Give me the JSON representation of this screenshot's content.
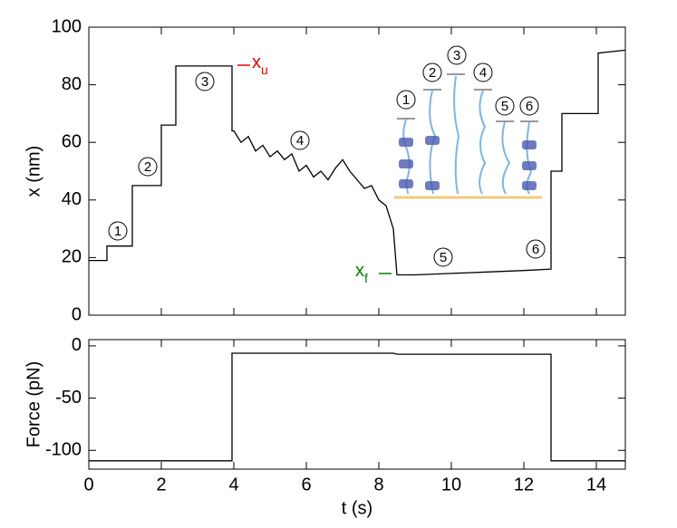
{
  "chart_data": [
    {
      "type": "line",
      "ylabel": "x (nm)",
      "xlim": [
        0,
        14.8
      ],
      "xticks": [
        0,
        2,
        4,
        6,
        8,
        10,
        12,
        14
      ],
      "ylim": [
        0,
        100
      ],
      "yticks": [
        0,
        20,
        40,
        60,
        80,
        100
      ],
      "series": [
        {
          "color": "#000000",
          "x": [
            0,
            0.5,
            0.5,
            1.2,
            1.2,
            2.0,
            2.0,
            2.4,
            2.4,
            3.95,
            3.95,
            4.0,
            4.2,
            4.4,
            4.6,
            4.8,
            5.0,
            5.2,
            5.4,
            5.6,
            5.8,
            6.0,
            6.2,
            6.4,
            6.6,
            6.8,
            7.0,
            7.2,
            7.4,
            7.6,
            7.8,
            8.0,
            8.2,
            8.4,
            8.5,
            9,
            10,
            11,
            12,
            12.75,
            12.75,
            13.05,
            13.05,
            14.05,
            14.05,
            14.8
          ],
          "values": [
            19,
            19,
            24,
            24,
            45,
            45,
            66,
            66,
            86.5,
            86.5,
            64,
            64,
            60,
            62,
            57,
            59,
            55,
            57,
            54,
            56,
            50,
            52,
            48,
            50,
            47,
            51,
            54,
            50,
            47,
            44,
            45,
            40,
            38,
            30,
            14,
            14,
            14.5,
            15,
            15.5,
            16,
            50,
            50,
            70,
            70,
            91,
            92
          ]
        }
      ],
      "annotations": [
        "1",
        "2",
        "3",
        "4",
        "5",
        "6"
      ],
      "level_labels": [
        {
          "text": "x",
          "sub": "u",
          "color": "#e00000"
        },
        {
          "text": "x",
          "sub": "f",
          "color": "#008000"
        }
      ]
    },
    {
      "type": "line",
      "xlabel": "t (s)",
      "ylabel": "Force (pN)",
      "xlim": [
        0,
        14.8
      ],
      "xticks": [
        0,
        2,
        4,
        6,
        8,
        10,
        12,
        14
      ],
      "ylim": [
        -118,
        6
      ],
      "yticks": [
        0,
        -50,
        -100
      ],
      "series": [
        {
          "color": "#000000",
          "x": [
            0,
            3.95,
            3.95,
            8.4,
            8.5,
            12.75,
            12.75,
            14.8
          ],
          "values": [
            -110,
            -110,
            -7,
            -7,
            -8,
            -8,
            -110,
            -110
          ]
        }
      ]
    }
  ],
  "inset": {
    "labels": [
      "1",
      "2",
      "3",
      "4",
      "5",
      "6"
    ]
  }
}
